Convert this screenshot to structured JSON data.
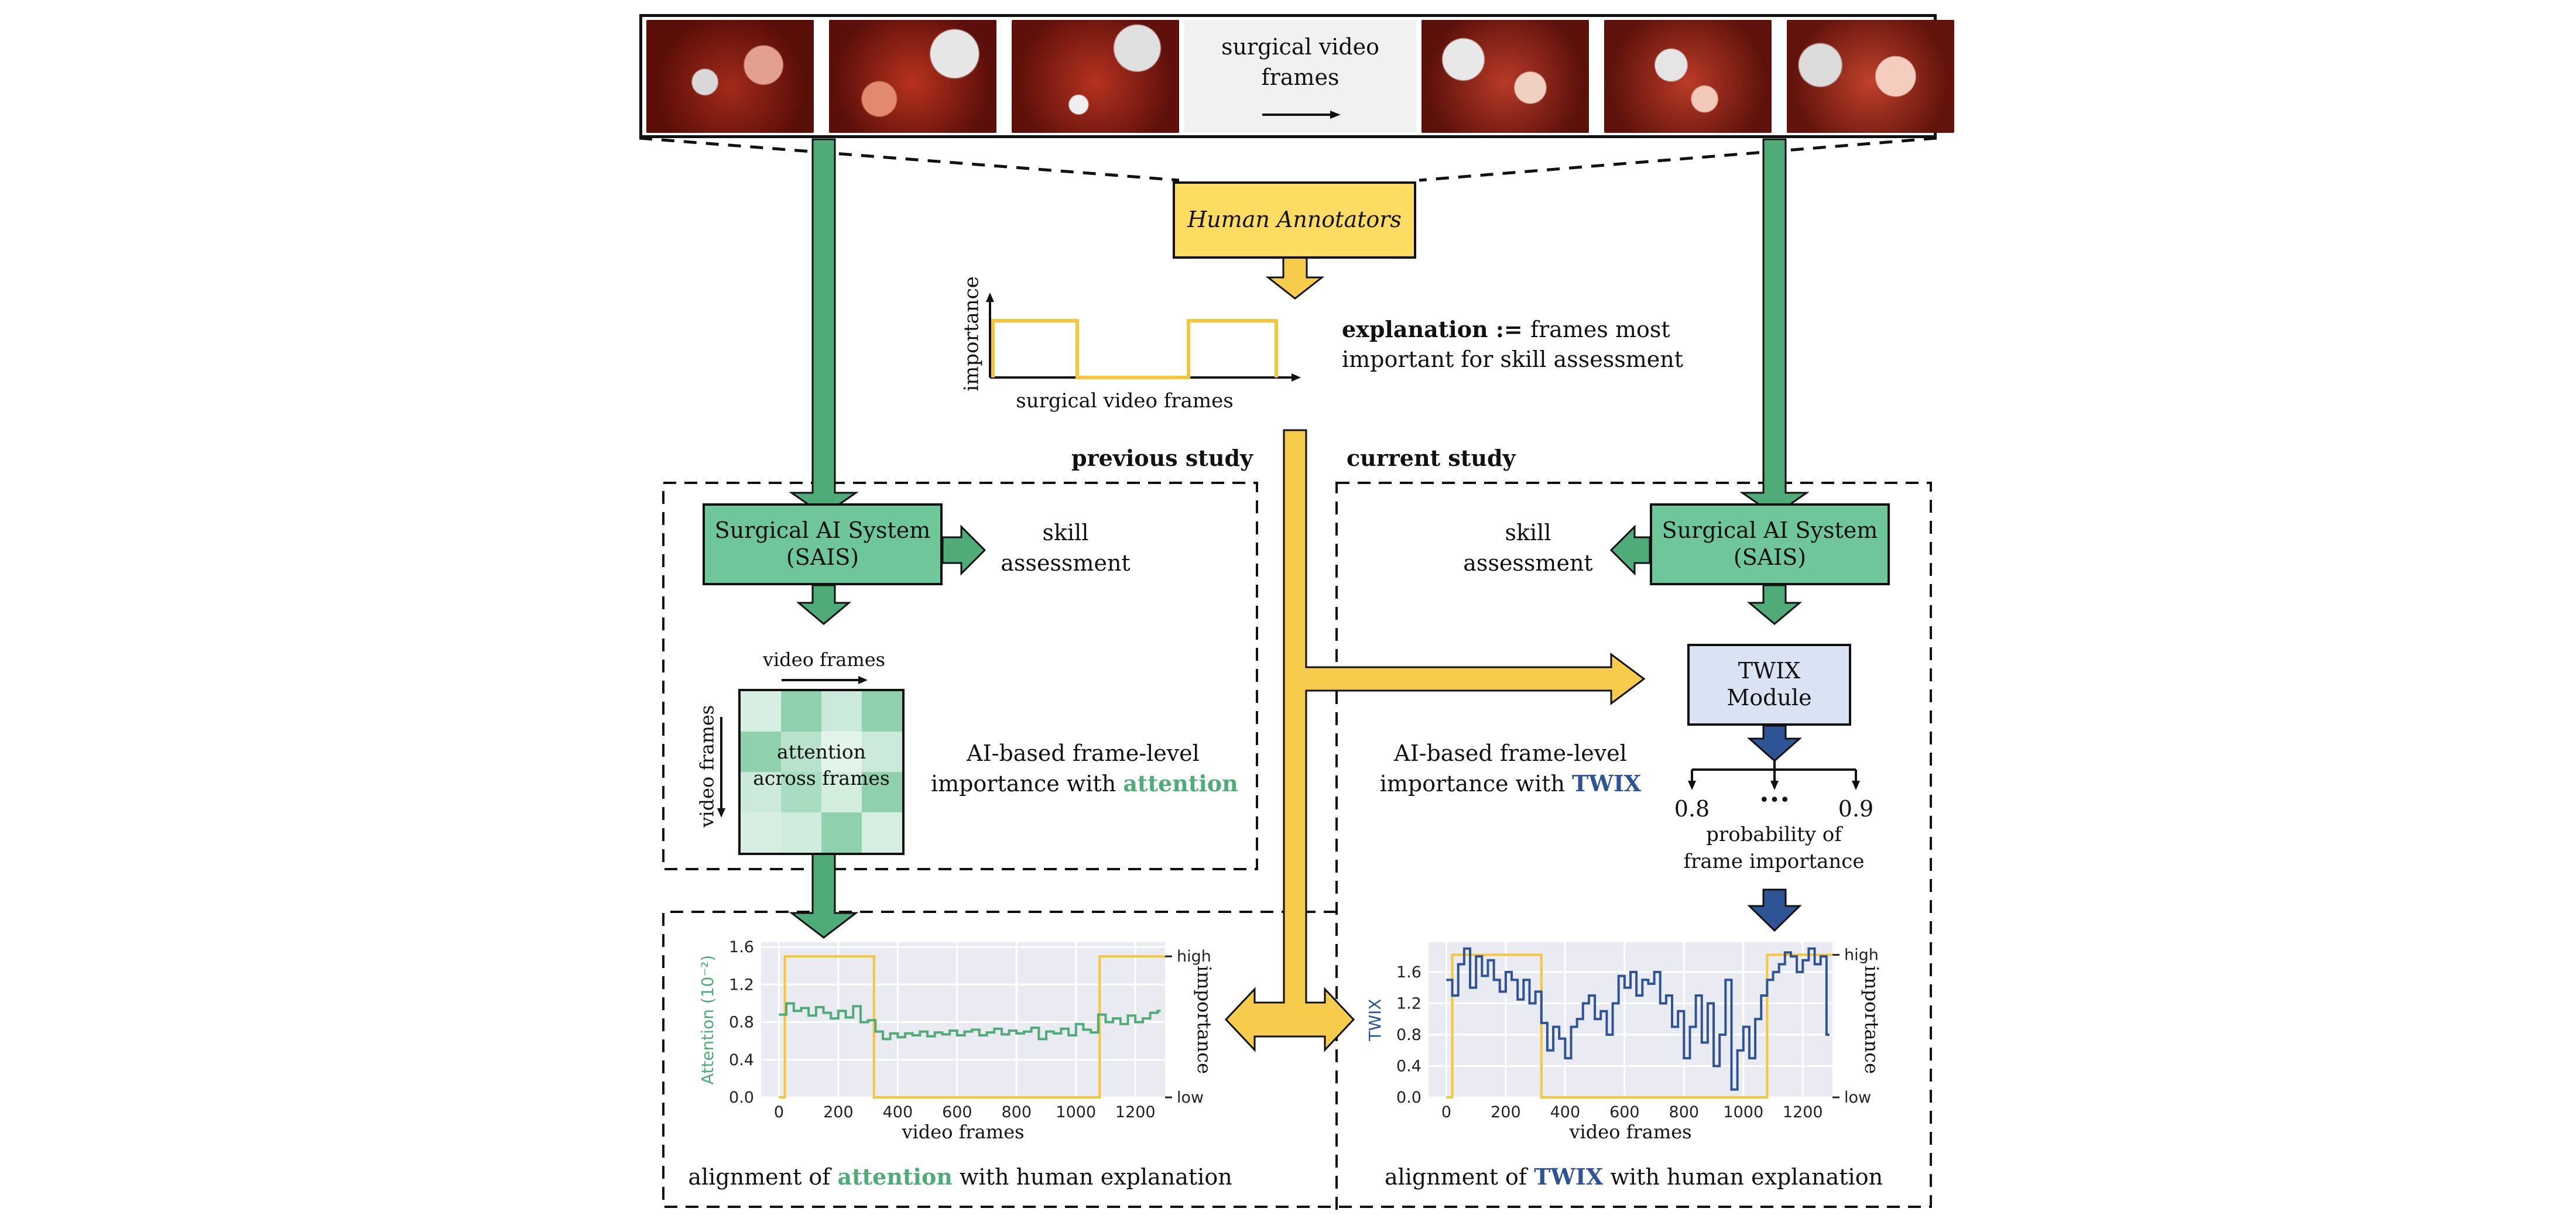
{
  "colors": {
    "green": "#4fac78",
    "green_fill": "#6fc69a",
    "yellow": "#f7cc4c",
    "yellow_box": "#fddc62",
    "blue": "#2e5496",
    "twix_box": "#dae3f3",
    "plot_bg": "#eaeaf2",
    "signal_yellow": "#f5c637"
  },
  "top_strip": {
    "label_line1": "surgical video",
    "label_line2": "frames"
  },
  "annotators": {
    "label": "Human Annotators"
  },
  "explanation_plot": {
    "ylabel": "importance",
    "xlabel": "surgical video frames"
  },
  "explanation_text": {
    "bold": "explanation",
    "op": " := ",
    "rest_line1": "frames most",
    "line2": "important for skill assessment"
  },
  "section_labels": {
    "previous": "previous study",
    "current": "current study"
  },
  "left_panel": {
    "sais_line1": "Surgical AI System",
    "sais_line2": "(SAIS)",
    "skill_line1": "skill",
    "skill_line2": "assessment",
    "heatmap_top_label": "video frames",
    "heatmap_side_label": "video frames",
    "heatmap_center_line1": "attention",
    "heatmap_center_line2": "across frames",
    "importance_line1": "AI-based frame-level",
    "importance_line2_prefix": "importance with ",
    "importance_keyword": "attention"
  },
  "right_panel": {
    "sais_line1": "Surgical AI System",
    "sais_line2": "(SAIS)",
    "skill_line1": "skill",
    "skill_line2": "assessment",
    "twix_line1": "TWIX",
    "twix_line2": "Module",
    "importance_line1": "AI-based frame-level",
    "importance_line2_prefix": "importance with ",
    "importance_keyword": "TWIX",
    "prob_low": "0.8",
    "prob_dots": "•••",
    "prob_high": "0.9",
    "prob_label_line1": "probability of",
    "prob_label_line2": "frame importance"
  },
  "bottom_left": {
    "caption_prefix": "alignment of ",
    "caption_keyword": "attention",
    "caption_suffix": " with human explanation"
  },
  "bottom_right": {
    "caption_prefix": "alignment of ",
    "caption_keyword": "TWIX",
    "caption_suffix": " with human explanation"
  },
  "chart_data": [
    {
      "type": "line",
      "xlabel": "video frames",
      "ylabel": "Attention (10⁻²)",
      "y2label": "importance",
      "xticks": [
        "0",
        "200",
        "400",
        "600",
        "800",
        "1000",
        "1200"
      ],
      "yticks": [
        "0.0",
        "0.4",
        "0.8",
        "1.2",
        "1.6"
      ],
      "y2ticks": [
        "low",
        "high"
      ],
      "xlim": [
        -60,
        1300
      ],
      "ylim": [
        0,
        1.65
      ],
      "grid": true,
      "series": [
        {
          "kind": "attention",
          "x": [
            0,
            25,
            50,
            75,
            100,
            125,
            150,
            175,
            200,
            225,
            250,
            275,
            300,
            325,
            350,
            375,
            400,
            425,
            450,
            475,
            500,
            525,
            550,
            575,
            600,
            625,
            650,
            675,
            700,
            725,
            750,
            775,
            800,
            825,
            850,
            875,
            900,
            925,
            950,
            975,
            1000,
            1025,
            1050,
            1075,
            1100,
            1125,
            1150,
            1175,
            1200,
            1225,
            1250,
            1275
          ],
          "y": [
            0.88,
            1.0,
            0.92,
            0.95,
            0.87,
            0.96,
            0.9,
            0.84,
            0.92,
            0.85,
            0.97,
            0.8,
            0.82,
            0.7,
            0.62,
            0.68,
            0.64,
            0.68,
            0.66,
            0.7,
            0.65,
            0.69,
            0.67,
            0.71,
            0.66,
            0.7,
            0.72,
            0.66,
            0.69,
            0.73,
            0.67,
            0.71,
            0.68,
            0.7,
            0.74,
            0.62,
            0.7,
            0.68,
            0.73,
            0.66,
            0.78,
            0.72,
            0.69,
            0.88,
            0.8,
            0.84,
            0.78,
            0.87,
            0.8,
            0.84,
            0.9,
            0.92
          ]
        },
        {
          "kind": "human_importance",
          "x": [
            0,
            20,
            20,
            320,
            320,
            1080,
            1080,
            1300
          ],
          "y": [
            0,
            0,
            1.5,
            1.5,
            0,
            0,
            1.5,
            1.5
          ]
        }
      ]
    },
    {
      "type": "line",
      "xlabel": "video frames",
      "ylabel": "TWIX",
      "y2label": "importance",
      "xticks": [
        "0",
        "200",
        "400",
        "600",
        "800",
        "1000",
        "1200"
      ],
      "yticks": [
        "0.0",
        "0.4",
        "0.8",
        "1.2",
        "1.6"
      ],
      "y2ticks": [
        "low",
        "high"
      ],
      "xlim": [
        -60,
        1300
      ],
      "ylim": [
        0,
        1.98
      ],
      "grid": true,
      "series": [
        {
          "kind": "twix",
          "x": [
            0,
            20,
            40,
            60,
            80,
            100,
            120,
            140,
            160,
            180,
            200,
            220,
            240,
            260,
            280,
            300,
            320,
            340,
            360,
            380,
            400,
            420,
            440,
            460,
            480,
            500,
            520,
            540,
            560,
            580,
            600,
            620,
            640,
            660,
            680,
            700,
            720,
            740,
            760,
            780,
            800,
            820,
            840,
            860,
            880,
            900,
            920,
            940,
            960,
            980,
            1000,
            1020,
            1040,
            1060,
            1080,
            1100,
            1120,
            1140,
            1160,
            1180,
            1200,
            1220,
            1240,
            1260,
            1280
          ],
          "y": [
            1.5,
            1.3,
            1.7,
            1.9,
            1.4,
            1.8,
            1.55,
            1.75,
            1.5,
            1.35,
            1.6,
            1.5,
            1.25,
            1.5,
            1.2,
            1.35,
            0.95,
            0.6,
            0.9,
            0.75,
            0.5,
            0.9,
            1.0,
            1.2,
            1.3,
            1.0,
            1.1,
            0.8,
            1.2,
            1.55,
            1.4,
            1.6,
            1.3,
            1.5,
            1.45,
            1.6,
            1.2,
            1.3,
            0.9,
            1.1,
            0.5,
            0.9,
            1.3,
            0.7,
            1.2,
            0.4,
            0.8,
            1.5,
            0.1,
            0.6,
            0.9,
            0.5,
            1.0,
            1.3,
            1.5,
            1.6,
            1.7,
            1.85,
            1.8,
            1.6,
            1.75,
            1.9,
            1.7,
            1.8,
            0.8
          ]
        },
        {
          "kind": "human_importance",
          "x": [
            0,
            20,
            20,
            320,
            320,
            1080,
            1080,
            1300
          ],
          "y": [
            0,
            0,
            1.82,
            1.82,
            0,
            0,
            1.82,
            1.82
          ]
        }
      ]
    }
  ]
}
